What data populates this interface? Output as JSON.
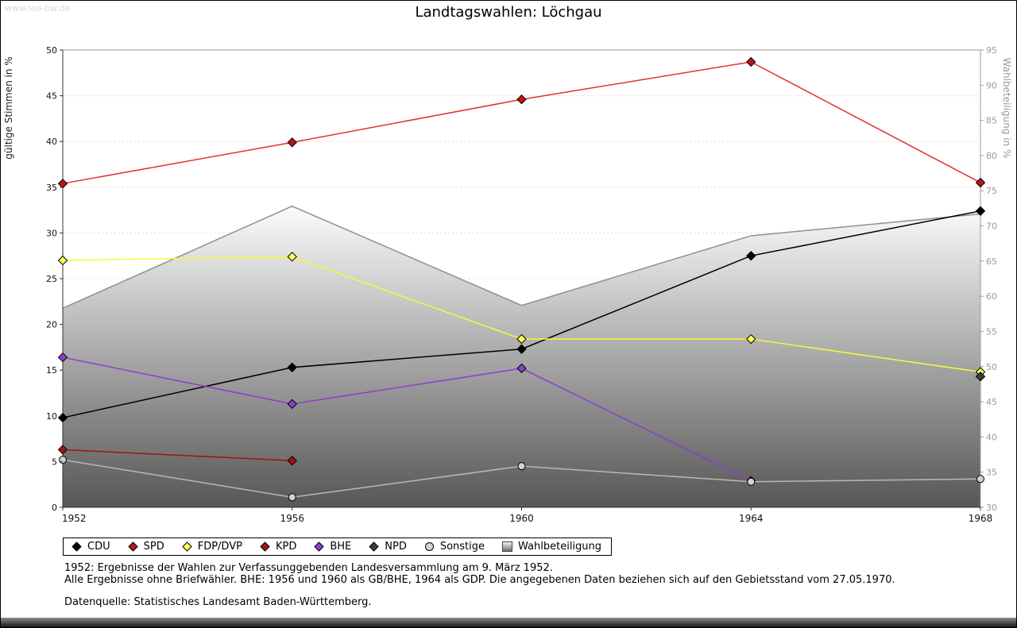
{
  "page": {
    "watermark": "www.leo-bw.de",
    "title": "Landtagswahlen: Löchgau",
    "footnotes": [
      "1952: Ergebnisse der Wahlen zur Verfassunggebenden Landesversammlung am 9. März 1952.",
      "Alle Ergebnisse ohne Briefwähler. BHE: 1956 und 1960 als GB/BHE, 1964 als GDP. Die angegebenen Daten beziehen sich auf den Gebietsstand vom 27.05.1970.",
      "Datenquelle: Statistisches Landesamt Baden-Württemberg."
    ]
  },
  "chart_data": {
    "type": "line",
    "title": "Landtagswahlen: Löchgau",
    "x": [
      1952,
      1956,
      1960,
      1964,
      1968
    ],
    "left_axis": {
      "label": "gültige Stimmen in %",
      "min": 0,
      "max": 50,
      "step": 5
    },
    "right_axis": {
      "label": "Wahlbeteiligung in %",
      "min": 30,
      "max": 95,
      "step": 5
    },
    "grid": true,
    "legend_position": "bottom",
    "series": [
      {
        "name": "CDU",
        "color": "#000000",
        "marker_fill": "#000000",
        "marker": "diamond",
        "axis": "left",
        "values": [
          9.8,
          15.3,
          17.3,
          27.5,
          32.4
        ]
      },
      {
        "name": "SPD",
        "color": "#e23131",
        "marker_fill": "#bb1515",
        "marker": "diamond",
        "axis": "left",
        "values": [
          35.4,
          39.9,
          44.6,
          48.7,
          35.5
        ]
      },
      {
        "name": "FDP/DVP",
        "color": "#f8f838",
        "marker_fill": "#ffff55",
        "marker": "diamond",
        "axis": "left",
        "values": [
          27.0,
          27.4,
          18.4,
          18.4,
          14.8
        ]
      },
      {
        "name": "KPD",
        "color": "#a51212",
        "marker_fill": "#a51212",
        "marker": "diamond",
        "axis": "left",
        "values": [
          6.3,
          5.1,
          null,
          null,
          null
        ]
      },
      {
        "name": "BHE",
        "color": "#8a3fcc",
        "marker_fill": "#8a3fcc",
        "marker": "diamond",
        "axis": "left",
        "values": [
          16.4,
          11.3,
          15.2,
          2.9,
          null
        ]
      },
      {
        "name": "NPD",
        "color": "#3c3c3c",
        "marker_fill": "#3c3c3c",
        "marker": "diamond",
        "axis": "left",
        "values": [
          null,
          null,
          null,
          null,
          14.3
        ]
      },
      {
        "name": "Sonstige",
        "color": "#b8b8b8",
        "marker_fill": "#d2d2d2",
        "marker": "circle",
        "axis": "left",
        "values": [
          5.2,
          1.1,
          4.5,
          2.8,
          3.1
        ]
      }
    ],
    "area_series": {
      "name": "Wahlbeteiligung",
      "axis": "right",
      "values": [
        58.3,
        72.8,
        58.7,
        68.6,
        71.7
      ],
      "fill_top": "#fbfbfb",
      "fill_bottom": "#565656",
      "stroke": "#8f8f8f"
    }
  }
}
